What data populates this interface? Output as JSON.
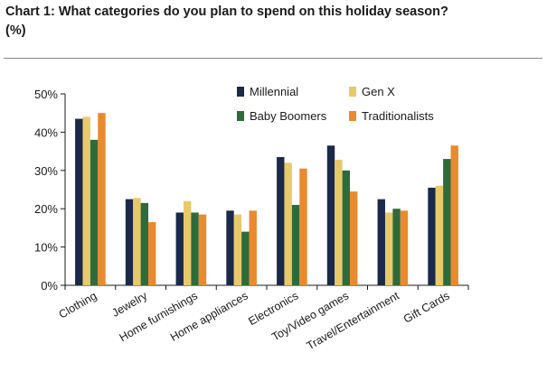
{
  "header": {
    "title": "Chart 1: What categories do you plan to spend on this holiday season?",
    "subtitle": "(%)"
  },
  "chart_data": {
    "type": "bar",
    "title": "Chart 1: What categories do you plan to spend on this holiday season?",
    "subtitle": "(%)",
    "xlabel": "",
    "ylabel": "",
    "ylim": [
      0,
      50
    ],
    "yticks": [
      "0%",
      "10%",
      "20%",
      "30%",
      "40%",
      "50%"
    ],
    "grid": false,
    "legend_position": "top-right",
    "categories": [
      "Clothing",
      "Jewelry",
      "Home furnishings",
      "Home appliances",
      "Electronics",
      "Toy/Video games",
      "Travel/Entertainment",
      "Gift Cards"
    ],
    "series": [
      {
        "name": "Millennial",
        "color": "#1b2a4a",
        "values": [
          43.5,
          22.5,
          19,
          19.5,
          33.5,
          36.5,
          22.5,
          25.5
        ]
      },
      {
        "name": "Gen X",
        "color": "#e8c96a",
        "values": [
          44,
          22.8,
          22,
          18.5,
          32,
          32.8,
          19,
          26
        ]
      },
      {
        "name": "Baby Boomers",
        "color": "#2e6b3a",
        "values": [
          38,
          21.5,
          19,
          14,
          21,
          30,
          20,
          33
        ]
      },
      {
        "name": "Traditionalists",
        "color": "#e98a2e",
        "values": [
          45,
          16.5,
          18.5,
          19.5,
          30.5,
          24.5,
          19.5,
          36.5
        ]
      }
    ]
  }
}
